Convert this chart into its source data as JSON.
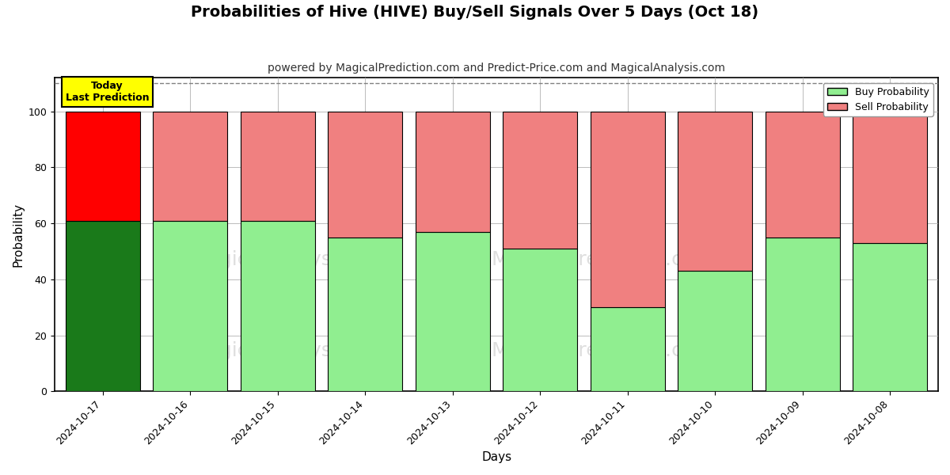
{
  "title": "Probabilities of Hive (HIVE) Buy/Sell Signals Over 5 Days (Oct 18)",
  "subtitle": "powered by MagicalPrediction.com and Predict-Price.com and MagicalAnalysis.com",
  "xlabel": "Days",
  "ylabel": "Probability",
  "dates": [
    "2024-10-17",
    "2024-10-16",
    "2024-10-15",
    "2024-10-14",
    "2024-10-13",
    "2024-10-12",
    "2024-10-11",
    "2024-10-10",
    "2024-10-09",
    "2024-10-08"
  ],
  "buy_values": [
    61,
    61,
    61,
    55,
    57,
    51,
    30,
    43,
    55,
    53
  ],
  "sell_values": [
    39,
    39,
    39,
    45,
    43,
    49,
    70,
    57,
    45,
    47
  ],
  "today_buy_color": "#1a7a1a",
  "today_sell_color": "#ff0000",
  "normal_buy_color": "#90ee90",
  "normal_sell_color": "#f08080",
  "bar_edge_color": "#000000",
  "ylim": [
    0,
    112
  ],
  "yticks": [
    0,
    20,
    40,
    60,
    80,
    100
  ],
  "dashed_line_y": 110,
  "watermark_color": "#c8c8c8",
  "watermark_alpha": 0.6,
  "today_label_text": "Today\nLast Prediction",
  "today_label_bgcolor": "#ffff00",
  "today_label_edgecolor": "#000000",
  "legend_buy_label": "Buy Probability",
  "legend_sell_label": "Sell Probability",
  "grid_color": "#aaaaaa",
  "background_color": "#ffffff",
  "title_fontsize": 14,
  "subtitle_fontsize": 10,
  "bar_width": 0.85
}
